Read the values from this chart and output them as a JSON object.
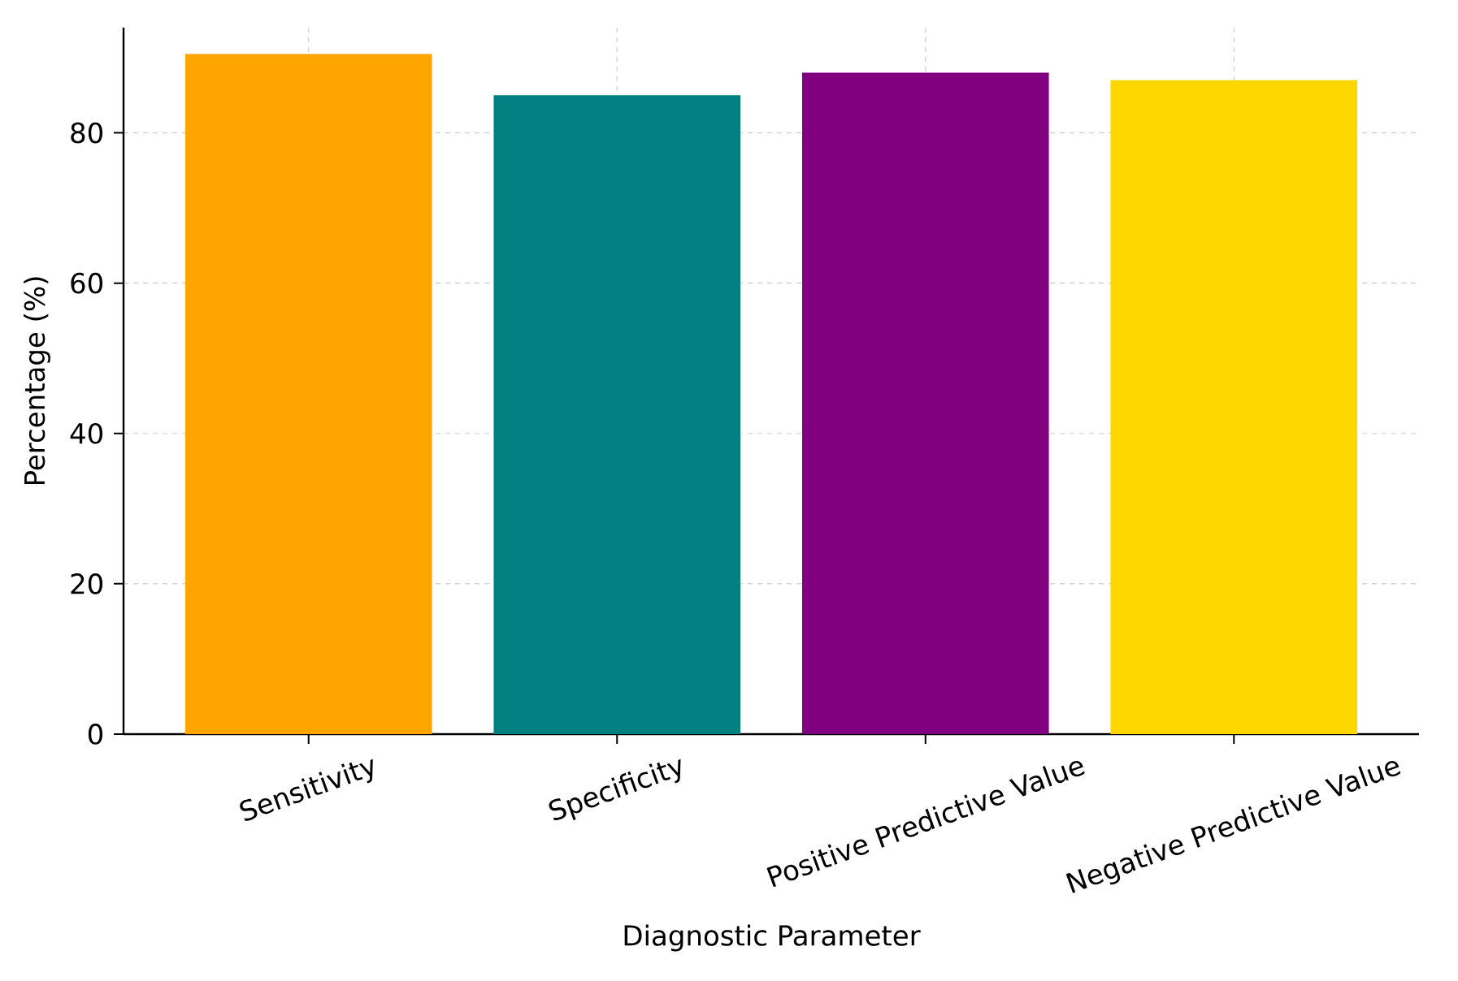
{
  "chart_data": {
    "type": "bar",
    "xlabel": "Diagnostic Parameter",
    "ylabel": "Percentage (%)",
    "categories": [
      "Sensitivity",
      "Specificity",
      "Positive Predictive Value",
      "Negative Predictive Value"
    ],
    "values": [
      90.5,
      85,
      88,
      87
    ],
    "colors": [
      "#ffa500",
      "#008080",
      "#800080",
      "#ffd700"
    ],
    "ylim": [
      0,
      94
    ],
    "yticks": [
      0,
      20,
      40,
      60,
      80
    ],
    "grid": true
  }
}
